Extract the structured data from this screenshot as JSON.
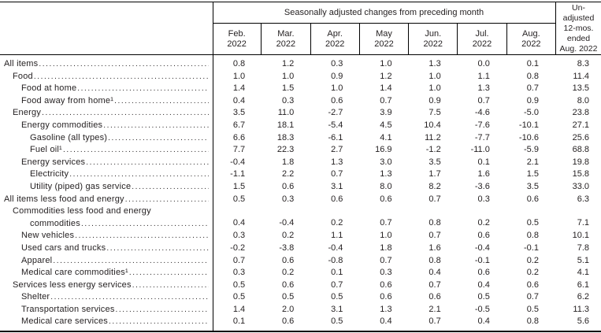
{
  "colors": {
    "background": "#ffffff",
    "text": "#231f20",
    "rule": "#000000"
  },
  "table": {
    "group_header": "Seasonally adjusted changes from preceding month",
    "unadjusted_header_lines": [
      "Un-",
      "adjusted",
      "12-mos.",
      "ended",
      "Aug. 2022"
    ],
    "month_columns": [
      {
        "month": "Feb.",
        "year": "2022"
      },
      {
        "month": "Mar.",
        "year": "2022"
      },
      {
        "month": "Apr.",
        "year": "2022"
      },
      {
        "month": "May",
        "year": "2022"
      },
      {
        "month": "Jun.",
        "year": "2022"
      },
      {
        "month": "Jul.",
        "year": "2022"
      },
      {
        "month": "Aug.",
        "year": "2022"
      }
    ],
    "column_keys": [
      "feb-2022",
      "mar-2022",
      "apr-2022",
      "may-2022",
      "jun-2022",
      "jul-2022",
      "aug-2022",
      "12-mos-ended-aug-2022"
    ],
    "rows": [
      {
        "label": "All items",
        "indent": 0,
        "values": [
          "0.8",
          "1.2",
          "0.3",
          "1.0",
          "1.3",
          "0.0",
          "0.1",
          "8.3"
        ]
      },
      {
        "label": "Food",
        "indent": 1,
        "values": [
          "1.0",
          "1.0",
          "0.9",
          "1.2",
          "1.0",
          "1.1",
          "0.8",
          "11.4"
        ]
      },
      {
        "label": "Food at home",
        "indent": 2,
        "values": [
          "1.4",
          "1.5",
          "1.0",
          "1.4",
          "1.0",
          "1.3",
          "0.7",
          "13.5"
        ]
      },
      {
        "label": "Food away from home¹",
        "indent": 2,
        "values": [
          "0.4",
          "0.3",
          "0.6",
          "0.7",
          "0.9",
          "0.7",
          "0.9",
          "8.0"
        ]
      },
      {
        "label": "Energy",
        "indent": 1,
        "values": [
          "3.5",
          "11.0",
          "-2.7",
          "3.9",
          "7.5",
          "-4.6",
          "-5.0",
          "23.8"
        ]
      },
      {
        "label": "Energy commodities",
        "indent": 2,
        "values": [
          "6.7",
          "18.1",
          "-5.4",
          "4.5",
          "10.4",
          "-7.6",
          "-10.1",
          "27.1"
        ]
      },
      {
        "label": "Gasoline (all types)",
        "indent": 3,
        "values": [
          "6.6",
          "18.3",
          "-6.1",
          "4.1",
          "11.2",
          "-7.7",
          "-10.6",
          "25.6"
        ]
      },
      {
        "label": "Fuel oil¹",
        "indent": 3,
        "values": [
          "7.7",
          "22.3",
          "2.7",
          "16.9",
          "-1.2",
          "-11.0",
          "-5.9",
          "68.8"
        ]
      },
      {
        "label": "Energy services",
        "indent": 2,
        "values": [
          "-0.4",
          "1.8",
          "1.3",
          "3.0",
          "3.5",
          "0.1",
          "2.1",
          "19.8"
        ]
      },
      {
        "label": "Electricity",
        "indent": 3,
        "values": [
          "-1.1",
          "2.2",
          "0.7",
          "1.3",
          "1.7",
          "1.6",
          "1.5",
          "15.8"
        ]
      },
      {
        "label": "Utility (piped) gas service",
        "indent": 3,
        "values": [
          "1.5",
          "0.6",
          "3.1",
          "8.0",
          "8.2",
          "-3.6",
          "3.5",
          "33.0"
        ]
      },
      {
        "label": "All items less food and energy",
        "indent": 0,
        "values": [
          "0.5",
          "0.3",
          "0.6",
          "0.6",
          "0.7",
          "0.3",
          "0.6",
          "6.3"
        ]
      },
      {
        "label": "Commodities less food and energy",
        "label_line2": "commodities",
        "indent": 1,
        "indent_line2": 3,
        "values": [
          "0.4",
          "-0.4",
          "0.2",
          "0.7",
          "0.8",
          "0.2",
          "0.5",
          "7.1"
        ]
      },
      {
        "label": "New vehicles",
        "indent": 2,
        "values": [
          "0.3",
          "0.2",
          "1.1",
          "1.0",
          "0.7",
          "0.6",
          "0.8",
          "10.1"
        ]
      },
      {
        "label": "Used cars and trucks",
        "indent": 2,
        "values": [
          "-0.2",
          "-3.8",
          "-0.4",
          "1.8",
          "1.6",
          "-0.4",
          "-0.1",
          "7.8"
        ]
      },
      {
        "label": "Apparel",
        "indent": 2,
        "values": [
          "0.7",
          "0.6",
          "-0.8",
          "0.7",
          "0.8",
          "-0.1",
          "0.2",
          "5.1"
        ]
      },
      {
        "label": "Medical care commodities¹",
        "indent": 2,
        "values": [
          "0.3",
          "0.2",
          "0.1",
          "0.3",
          "0.4",
          "0.6",
          "0.2",
          "4.1"
        ]
      },
      {
        "label": "Services less energy services",
        "indent": 1,
        "values": [
          "0.5",
          "0.6",
          "0.7",
          "0.6",
          "0.7",
          "0.4",
          "0.6",
          "6.1"
        ]
      },
      {
        "label": "Shelter",
        "indent": 2,
        "values": [
          "0.5",
          "0.5",
          "0.5",
          "0.6",
          "0.6",
          "0.5",
          "0.7",
          "6.2"
        ]
      },
      {
        "label": "Transportation services",
        "indent": 2,
        "values": [
          "1.4",
          "2.0",
          "3.1",
          "1.3",
          "2.1",
          "-0.5",
          "0.5",
          "11.3"
        ]
      },
      {
        "label": "Medical care services",
        "indent": 2,
        "values": [
          "0.1",
          "0.6",
          "0.5",
          "0.4",
          "0.7",
          "0.4",
          "0.8",
          "5.6"
        ]
      }
    ]
  }
}
